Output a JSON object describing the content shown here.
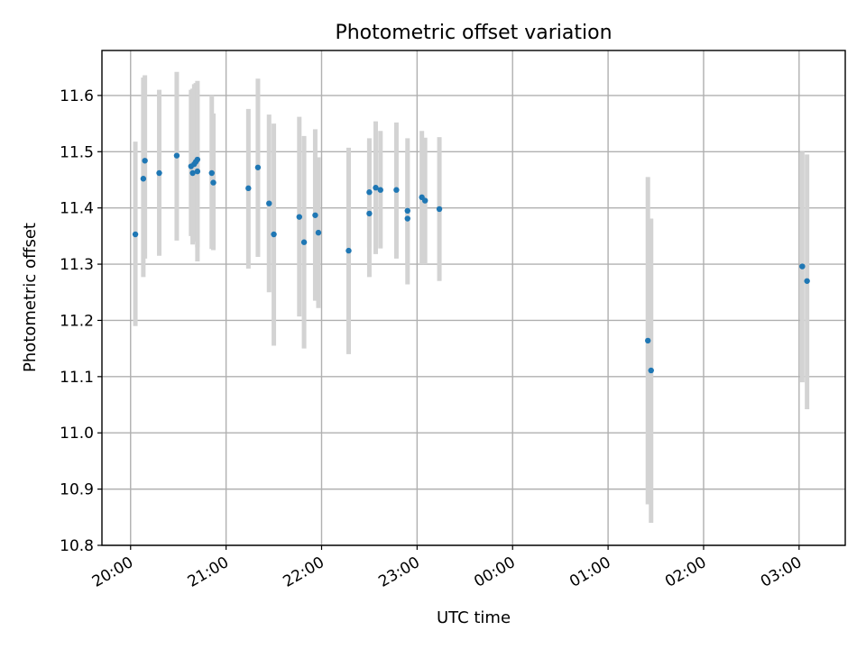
{
  "chart_data": {
    "type": "scatter",
    "title": "Photometric offset variation",
    "xlabel": "UTC time",
    "ylabel": "Photometric offset",
    "x_base_date": "2000-01-01",
    "xlim": [
      "2000-01-01 19:42",
      "2000-01-02 03:29"
    ],
    "ylim": [
      10.8,
      11.68
    ],
    "x_ticks": [
      {
        "time": "2000-01-01 20:00",
        "label": "20:00"
      },
      {
        "time": "2000-01-01 21:00",
        "label": "21:00"
      },
      {
        "time": "2000-01-01 22:00",
        "label": "22:00"
      },
      {
        "time": "2000-01-01 23:00",
        "label": "23:00"
      },
      {
        "time": "2000-01-02 00:00",
        "label": "00:00"
      },
      {
        "time": "2000-01-02 01:00",
        "label": "01:00"
      },
      {
        "time": "2000-01-02 02:00",
        "label": "02:00"
      },
      {
        "time": "2000-01-02 03:00",
        "label": "03:00"
      }
    ],
    "y_ticks": [
      {
        "value": 10.8,
        "label": "10.8"
      },
      {
        "value": 10.9,
        "label": "10.9"
      },
      {
        "value": 11.0,
        "label": "11.0"
      },
      {
        "value": 11.1,
        "label": "11.1"
      },
      {
        "value": 11.2,
        "label": "11.2"
      },
      {
        "value": 11.3,
        "label": "11.3"
      },
      {
        "value": 11.4,
        "label": "11.4"
      },
      {
        "value": 11.5,
        "label": "11.5"
      },
      {
        "value": 11.6,
        "label": "11.6"
      }
    ],
    "grid": true,
    "error_bar_color": "#d3d3d3",
    "marker_color": "#1f77b4",
    "points": [
      {
        "x": "2000-01-01 20:03",
        "y": 11.353,
        "lo": 11.19,
        "hi": 11.518
      },
      {
        "x": "2000-01-01 20:08",
        "y": 11.452,
        "lo": 11.277,
        "hi": 11.632
      },
      {
        "x": "2000-01-01 20:09",
        "y": 11.484,
        "lo": 11.31,
        "hi": 11.636
      },
      {
        "x": "2000-01-01 20:18",
        "y": 11.462,
        "lo": 11.315,
        "hi": 11.61
      },
      {
        "x": "2000-01-01 20:29",
        "y": 11.493,
        "lo": 11.342,
        "hi": 11.642
      },
      {
        "x": "2000-01-01 20:38",
        "y": 11.474,
        "lo": 11.35,
        "hi": 11.61
      },
      {
        "x": "2000-01-01 20:39",
        "y": 11.462,
        "lo": 11.335,
        "hi": 11.612
      },
      {
        "x": "2000-01-01 20:40",
        "y": 11.478,
        "lo": 11.34,
        "hi": 11.62
      },
      {
        "x": "2000-01-01 20:41",
        "y": 11.482,
        "lo": 11.36,
        "hi": 11.622
      },
      {
        "x": "2000-01-01 20:42",
        "y": 11.486,
        "lo": 11.305,
        "hi": 11.626
      },
      {
        "x": "2000-01-01 20:42",
        "y": 11.465,
        "lo": 11.33,
        "hi": 11.61
      },
      {
        "x": "2000-01-01 20:51",
        "y": 11.462,
        "lo": 11.327,
        "hi": 11.6
      },
      {
        "x": "2000-01-01 20:52",
        "y": 11.445,
        "lo": 11.325,
        "hi": 11.568
      },
      {
        "x": "2000-01-01 21:14",
        "y": 11.435,
        "lo": 11.292,
        "hi": 11.576
      },
      {
        "x": "2000-01-01 21:20",
        "y": 11.472,
        "lo": 11.313,
        "hi": 11.63
      },
      {
        "x": "2000-01-01 21:27",
        "y": 11.408,
        "lo": 11.25,
        "hi": 11.566
      },
      {
        "x": "2000-01-01 21:30",
        "y": 11.353,
        "lo": 11.155,
        "hi": 11.55
      },
      {
        "x": "2000-01-01 21:46",
        "y": 11.384,
        "lo": 11.207,
        "hi": 11.562
      },
      {
        "x": "2000-01-01 21:49",
        "y": 11.339,
        "lo": 11.15,
        "hi": 11.528
      },
      {
        "x": "2000-01-01 21:56",
        "y": 11.387,
        "lo": 11.235,
        "hi": 11.54
      },
      {
        "x": "2000-01-01 21:58",
        "y": 11.356,
        "lo": 11.222,
        "hi": 11.49
      },
      {
        "x": "2000-01-01 22:17",
        "y": 11.324,
        "lo": 11.14,
        "hi": 11.507
      },
      {
        "x": "2000-01-01 22:30",
        "y": 11.39,
        "lo": 11.277,
        "hi": 11.524
      },
      {
        "x": "2000-01-01 22:30",
        "y": 11.428,
        "lo": 11.33,
        "hi": 11.52
      },
      {
        "x": "2000-01-01 22:34",
        "y": 11.436,
        "lo": 11.318,
        "hi": 11.554
      },
      {
        "x": "2000-01-01 22:37",
        "y": 11.432,
        "lo": 11.328,
        "hi": 11.537
      },
      {
        "x": "2000-01-01 22:47",
        "y": 11.432,
        "lo": 11.31,
        "hi": 11.552
      },
      {
        "x": "2000-01-01 22:54",
        "y": 11.381,
        "lo": 11.264,
        "hi": 11.524
      },
      {
        "x": "2000-01-01 22:54",
        "y": 11.395,
        "lo": 11.3,
        "hi": 11.5
      },
      {
        "x": "2000-01-01 23:03",
        "y": 11.419,
        "lo": 11.3,
        "hi": 11.537
      },
      {
        "x": "2000-01-01 23:05",
        "y": 11.413,
        "lo": 11.3,
        "hi": 11.525
      },
      {
        "x": "2000-01-01 23:14",
        "y": 11.398,
        "lo": 11.27,
        "hi": 11.526
      },
      {
        "x": "2000-01-02 01:25",
        "y": 11.164,
        "lo": 10.873,
        "hi": 11.455
      },
      {
        "x": "2000-01-02 01:27",
        "y": 11.111,
        "lo": 10.84,
        "hi": 11.381
      },
      {
        "x": "2000-01-02 03:02",
        "y": 11.296,
        "lo": 11.09,
        "hi": 11.5
      },
      {
        "x": "2000-01-02 03:05",
        "y": 11.27,
        "lo": 11.042,
        "hi": 11.495
      }
    ]
  }
}
